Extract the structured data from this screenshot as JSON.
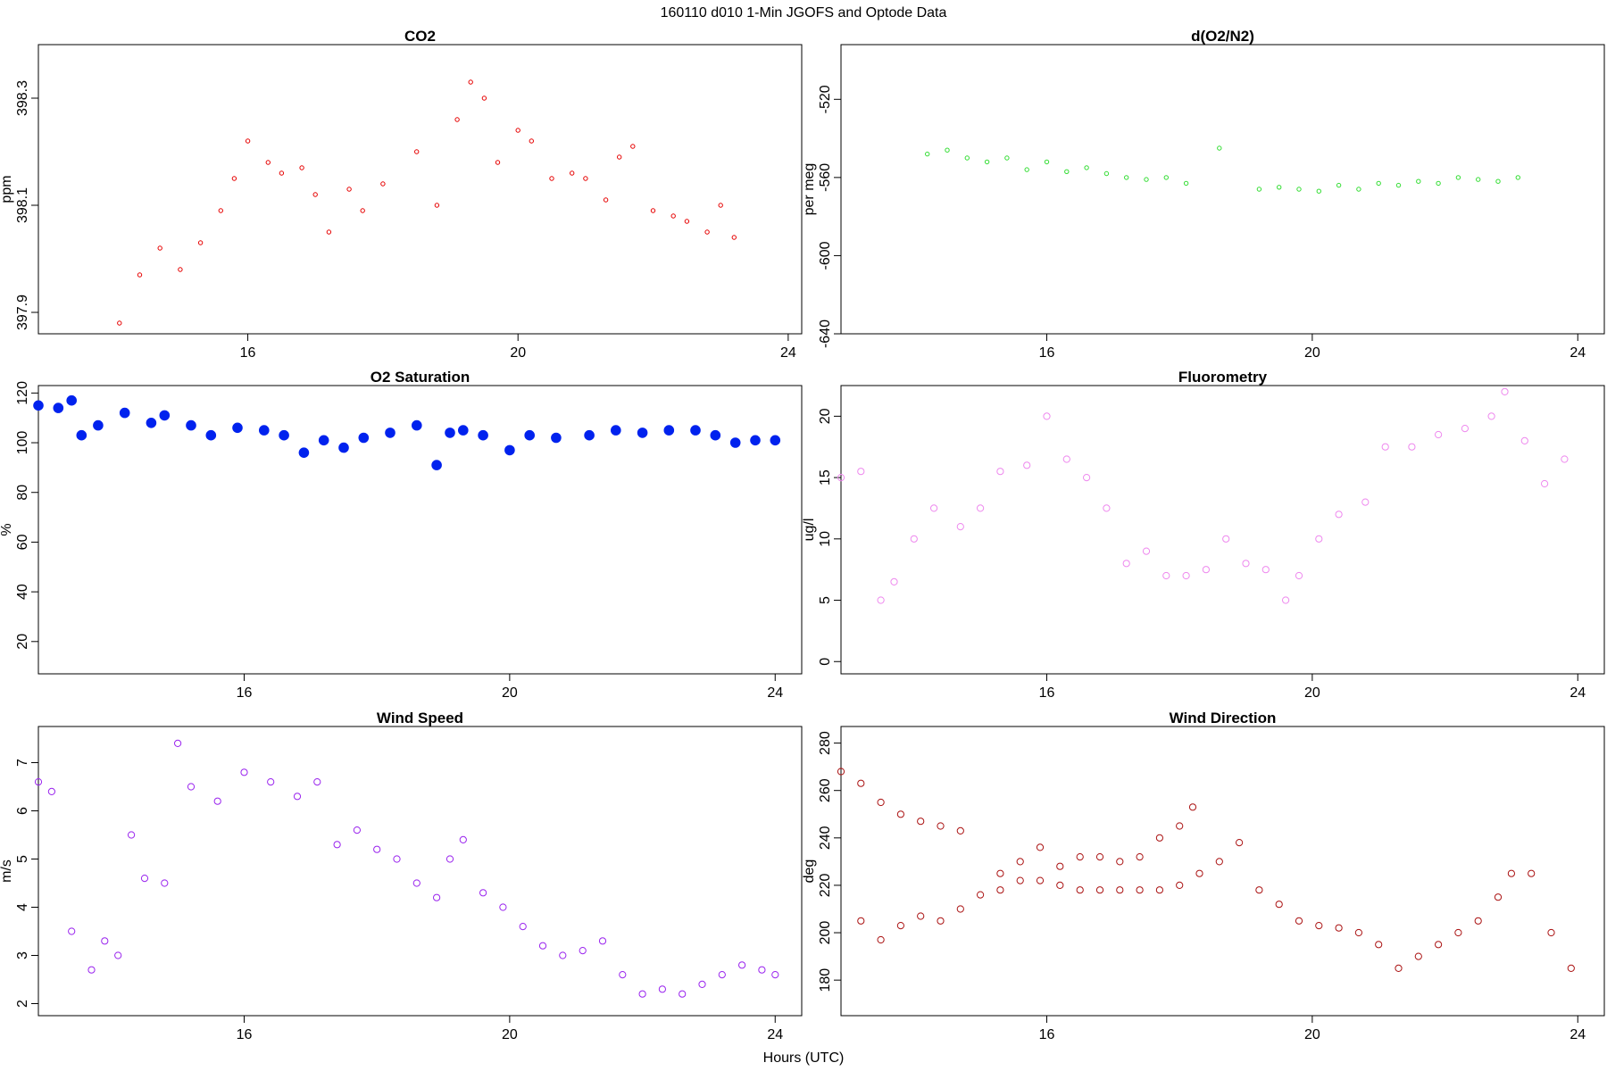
{
  "figure": {
    "supertitle": "160110   d010   1-Min  JGOFS and Optode Data",
    "xlabel": "Hours (UTC)"
  },
  "chart_data": [
    {
      "id": "co2",
      "type": "scatter",
      "title": "CO2",
      "ylabel": "ppm",
      "color": "#e60000",
      "marker_size": "small",
      "xlim": [
        12.9,
        24.2
      ],
      "ylim": [
        397.86,
        398.4
      ],
      "xticks": [
        16,
        20,
        24
      ],
      "yticks": [
        397.9,
        398.1,
        398.3
      ],
      "ytick_labels": [
        "397.9",
        "398.1",
        "398.3"
      ],
      "x": [
        14.1,
        14.4,
        14.7,
        15.0,
        15.3,
        15.6,
        15.8,
        16.0,
        16.3,
        16.5,
        16.8,
        17.0,
        17.2,
        17.5,
        17.7,
        18.0,
        18.5,
        18.8,
        19.1,
        19.3,
        19.5,
        19.7,
        20.0,
        20.2,
        20.5,
        20.8,
        21.0,
        21.3,
        21.5,
        21.7,
        22.0,
        22.3,
        22.5,
        22.8,
        23.0,
        23.2
      ],
      "y": [
        397.88,
        397.97,
        398.02,
        397.98,
        398.03,
        398.09,
        398.15,
        398.22,
        398.18,
        398.16,
        398.17,
        398.12,
        398.05,
        398.13,
        398.09,
        398.14,
        398.2,
        398.1,
        398.26,
        398.33,
        398.3,
        398.18,
        398.24,
        398.22,
        398.15,
        398.16,
        398.15,
        398.11,
        398.19,
        398.21,
        398.09,
        398.08,
        398.07,
        398.05,
        398.1,
        398.04
      ]
    },
    {
      "id": "o2n2",
      "type": "scatter",
      "title": "d(O2/N2)",
      "ylabel": "per meg",
      "color": "#33dd33",
      "marker_size": "small",
      "xlim": [
        12.9,
        24.4
      ],
      "ylim": [
        -640,
        -492
      ],
      "xticks": [
        16,
        20,
        24
      ],
      "yticks": [
        -640,
        -600,
        -560,
        -520
      ],
      "ytick_labels": [
        "-640",
        "-600",
        "-560",
        "-520"
      ],
      "x": [
        14.2,
        14.5,
        14.8,
        15.1,
        15.4,
        15.7,
        16.0,
        16.3,
        16.6,
        16.9,
        17.2,
        17.5,
        17.8,
        18.1,
        18.6,
        19.2,
        19.5,
        19.8,
        20.1,
        20.4,
        20.7,
        21.0,
        21.3,
        21.6,
        21.9,
        22.2,
        22.5,
        22.8,
        23.1
      ],
      "y": [
        -548,
        -546,
        -550,
        -552,
        -550,
        -556,
        -552,
        -557,
        -555,
        -558,
        -560,
        -561,
        -560,
        -563,
        -545,
        -566,
        -565,
        -566,
        -567,
        -564,
        -566,
        -563,
        -564,
        -562,
        -563,
        -560,
        -561,
        -562,
        -560
      ]
    },
    {
      "id": "o2sat",
      "type": "scatter",
      "title": "O2 Saturation",
      "ylabel": "%",
      "color": "#0022ee",
      "marker_size": "large",
      "xlim": [
        12.9,
        24.4
      ],
      "ylim": [
        7,
        123
      ],
      "xticks": [
        16,
        20,
        24
      ],
      "yticks": [
        20,
        40,
        60,
        80,
        100,
        120
      ],
      "ytick_labels": [
        "20",
        "40",
        "60",
        "80",
        "100",
        "120"
      ],
      "x": [
        12.9,
        13.2,
        13.4,
        13.55,
        13.8,
        14.2,
        14.6,
        14.8,
        15.2,
        15.5,
        15.9,
        16.3,
        16.6,
        16.9,
        17.2,
        17.5,
        17.8,
        18.2,
        18.6,
        18.9,
        19.1,
        19.3,
        19.6,
        20.0,
        20.3,
        20.7,
        21.2,
        21.6,
        22.0,
        22.4,
        22.8,
        23.1,
        23.4,
        23.7,
        24.0
      ],
      "y": [
        115,
        114,
        117,
        103,
        107,
        112,
        108,
        111,
        107,
        103,
        106,
        105,
        103,
        96,
        101,
        98,
        102,
        104,
        107,
        91,
        104,
        105,
        103,
        97,
        103,
        102,
        103,
        105,
        104,
        105,
        105,
        103,
        100,
        101,
        101
      ]
    },
    {
      "id": "fluor",
      "type": "scatter",
      "title": "Fluorometry",
      "ylabel": "ug/l",
      "color": "#ee88ee",
      "marker_size": "medium",
      "xlim": [
        12.9,
        24.4
      ],
      "ylim": [
        -1,
        22.5
      ],
      "xticks": [
        16,
        20,
        24
      ],
      "yticks": [
        0,
        5,
        10,
        15,
        20
      ],
      "ytick_labels": [
        "0",
        "5",
        "10",
        "15",
        "20"
      ],
      "x": [
        12.9,
        13.2,
        13.5,
        13.7,
        14.0,
        14.3,
        14.7,
        15.0,
        15.3,
        15.7,
        16.0,
        16.3,
        16.6,
        16.9,
        17.2,
        17.5,
        17.8,
        18.1,
        18.4,
        18.7,
        19.0,
        19.3,
        19.6,
        19.8,
        20.1,
        20.4,
        20.8,
        21.1,
        21.5,
        21.9,
        22.3,
        22.7,
        22.9,
        23.2,
        23.5,
        23.8
      ],
      "y": [
        15,
        15.5,
        5,
        6.5,
        10,
        12.5,
        11,
        12.5,
        15.5,
        16,
        20,
        16.5,
        15,
        12.5,
        8,
        9,
        7,
        7,
        7.5,
        10,
        8,
        7.5,
        5,
        7,
        10,
        12,
        13,
        17.5,
        17.5,
        18.5,
        19,
        20,
        22,
        18,
        14.5,
        16.5
      ]
    },
    {
      "id": "wspd",
      "type": "scatter",
      "title": "Wind Speed",
      "ylabel": "m/s",
      "color": "#9922ee",
      "marker_size": "medium",
      "xlim": [
        12.9,
        24.4
      ],
      "ylim": [
        1.75,
        7.75
      ],
      "xticks": [
        16,
        20,
        24
      ],
      "yticks": [
        2,
        3,
        4,
        5,
        6,
        7
      ],
      "ytick_labels": [
        "2",
        "3",
        "4",
        "5",
        "6",
        "7"
      ],
      "x": [
        12.9,
        13.1,
        13.4,
        13.7,
        13.9,
        14.1,
        14.3,
        14.5,
        14.8,
        15.0,
        15.2,
        15.6,
        16.0,
        16.4,
        16.8,
        17.1,
        17.4,
        17.7,
        18.0,
        18.3,
        18.6,
        18.9,
        19.1,
        19.3,
        19.6,
        19.9,
        20.2,
        20.5,
        20.8,
        21.1,
        21.4,
        21.7,
        22.0,
        22.3,
        22.6,
        22.9,
        23.2,
        23.5,
        23.8,
        24.0
      ],
      "y": [
        6.6,
        6.4,
        3.5,
        2.7,
        3.3,
        3.0,
        5.5,
        4.6,
        4.5,
        7.4,
        6.5,
        6.2,
        6.8,
        6.6,
        6.3,
        6.6,
        5.3,
        5.6,
        5.2,
        5.0,
        4.5,
        4.2,
        5.0,
        5.4,
        4.3,
        4.0,
        3.6,
        3.2,
        3.0,
        3.1,
        3.3,
        2.6,
        2.2,
        2.3,
        2.2,
        2.4,
        2.6,
        2.8,
        2.7,
        2.6
      ]
    },
    {
      "id": "wdir",
      "type": "scatter",
      "title": "Wind Direction",
      "ylabel": "deg",
      "color": "#aa1111",
      "marker_size": "medium",
      "xlim": [
        12.9,
        24.4
      ],
      "ylim": [
        165,
        287
      ],
      "xticks": [
        16,
        20,
        24
      ],
      "yticks": [
        180,
        200,
        220,
        240,
        260,
        280
      ],
      "ytick_labels": [
        "180",
        "200",
        "220",
        "240",
        "260",
        "280"
      ],
      "x": [
        12.9,
        13.2,
        13.5,
        13.8,
        14.1,
        14.4,
        14.7,
        13.2,
        13.5,
        13.8,
        14.1,
        14.4,
        14.7,
        15.0,
        15.3,
        15.6,
        15.9,
        16.2,
        16.5,
        16.8,
        17.1,
        17.4,
        17.7,
        18.0,
        18.2,
        15.3,
        15.6,
        15.9,
        16.2,
        16.5,
        16.8,
        17.1,
        17.4,
        17.7,
        18.0,
        18.3,
        18.6,
        18.9,
        19.2,
        19.5,
        19.8,
        20.1,
        20.4,
        20.7,
        21.0,
        21.3,
        21.6,
        21.9,
        22.2,
        22.5,
        22.8,
        23.0,
        23.3,
        23.6,
        23.9
      ],
      "y": [
        268,
        263,
        255,
        250,
        247,
        245,
        243,
        205,
        197,
        203,
        207,
        205,
        210,
        216,
        225,
        230,
        236,
        228,
        232,
        232,
        230,
        232,
        240,
        245,
        253,
        218,
        222,
        222,
        220,
        218,
        218,
        218,
        218,
        218,
        220,
        225,
        230,
        238,
        218,
        212,
        205,
        203,
        202,
        200,
        195,
        185,
        190,
        195,
        200,
        205,
        215,
        225,
        225,
        200,
        185
      ]
    }
  ]
}
